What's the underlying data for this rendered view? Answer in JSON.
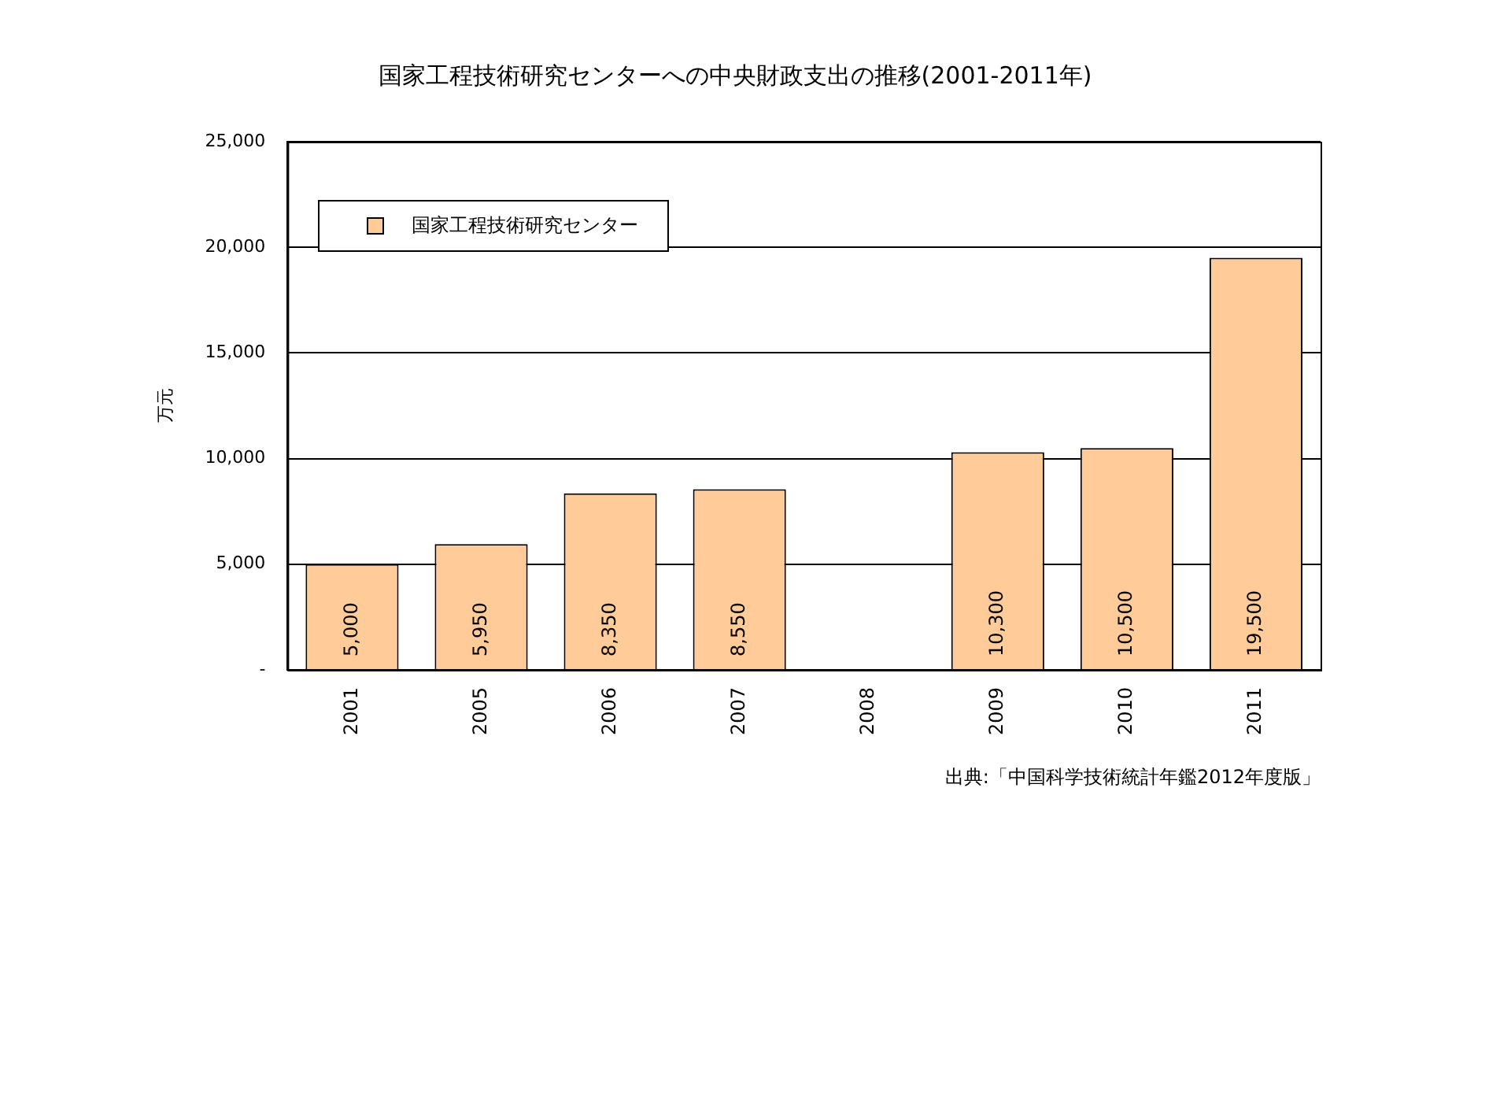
{
  "chart_data": {
    "type": "bar",
    "title": "国家工程技術研究センターへの中央財政支出の推移(2001-2011年)",
    "ylabel": "万元",
    "categories": [
      "2001",
      "2005",
      "2006",
      "2007",
      "2008",
      "2009",
      "2010",
      "2011"
    ],
    "series": [
      {
        "name": "国家工程技術研究センター",
        "color": "#ffcc99",
        "values": [
          5000,
          5950,
          8350,
          8550,
          null,
          10300,
          10500,
          19500
        ],
        "value_labels": [
          "5,000",
          "5,950",
          "8,350",
          "8,550",
          null,
          "10,300",
          "10,500",
          "19,500"
        ]
      }
    ],
    "ylim": [
      0,
      25000
    ],
    "yticks": [
      {
        "value": 0,
        "label": "-"
      },
      {
        "value": 5000,
        "label": "5,000"
      },
      {
        "value": 10000,
        "label": "10,000"
      },
      {
        "value": 15000,
        "label": "15,000"
      },
      {
        "value": 20000,
        "label": "20,000"
      },
      {
        "value": 25000,
        "label": "25,000"
      }
    ],
    "grid": "y",
    "legend": "top left",
    "annotations": [
      "出典:「中国科学技術統計年鑑2012年度版」"
    ]
  }
}
